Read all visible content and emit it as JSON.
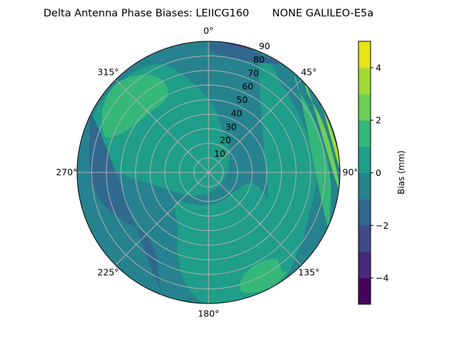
{
  "chart_data": {
    "type": "contour",
    "projection": "polar",
    "title": "Delta Antenna Phase Biases: LEIICG160       NONE GALILEO-E5a",
    "theta_direction": "clockwise",
    "theta_zero": "top",
    "theta_ticks": [
      "0°",
      "45°",
      "90°",
      "135°",
      "180°",
      "225°",
      "270°",
      "315°"
    ],
    "theta_tick_values": [
      0,
      45,
      90,
      135,
      180,
      225,
      270,
      315
    ],
    "r_ticks": [
      "10",
      "20",
      "30",
      "40",
      "50",
      "60",
      "70",
      "80",
      "90"
    ],
    "r_tick_values": [
      10,
      20,
      30,
      40,
      50,
      60,
      70,
      80,
      90
    ],
    "rlim": [
      0,
      90
    ],
    "grid": true,
    "levels": [
      -5,
      -4,
      -3,
      -2,
      -1,
      0,
      1,
      2,
      3,
      4,
      5
    ],
    "level_colors": [
      "#450559",
      "#482878",
      "#3e4a89",
      "#31688e",
      "#26828e",
      "#1f9e89",
      "#35b779",
      "#6ece58",
      "#a2da37",
      "#e5e419"
    ],
    "colorbar": {
      "label": "Bias (mm)",
      "ticks": [
        "−4",
        "−2",
        "0",
        "2",
        "4"
      ],
      "tick_values": [
        -4,
        -2,
        0,
        2,
        4
      ],
      "range": [
        -5,
        5
      ],
      "colormap": "viridis"
    },
    "background_value": -0.5,
    "regions": [
      {
        "value": 0.5,
        "points": [
          [
            5,
            45
          ],
          [
            350,
            62
          ],
          [
            335,
            86
          ],
          [
            300,
            90
          ],
          [
            280,
            80
          ],
          [
            268,
            58
          ],
          [
            255,
            35
          ],
          [
            225,
            22
          ],
          [
            180,
            15
          ],
          [
            130,
            12
          ],
          [
            80,
            14
          ],
          [
            40,
            22
          ],
          [
            15,
            32
          ]
        ]
      },
      {
        "value": 0.5,
        "points": [
          [
            235,
            30
          ],
          [
            210,
            40
          ],
          [
            200,
            62
          ],
          [
            190,
            80
          ],
          [
            180,
            90
          ],
          [
            160,
            90
          ],
          [
            140,
            88
          ],
          [
            125,
            72
          ],
          [
            118,
            55
          ],
          [
            112,
            40
          ],
          [
            100,
            30
          ],
          [
            120,
            22
          ],
          [
            160,
            22
          ],
          [
            200,
            24
          ]
        ]
      },
      {
        "value": 1.5,
        "points": [
          [
            290,
            75
          ],
          [
            302,
            84
          ],
          [
            315,
            87
          ],
          [
            328,
            78
          ],
          [
            335,
            68
          ],
          [
            333,
            56
          ],
          [
            314,
            56
          ],
          [
            298,
            60
          ],
          [
            288,
            71
          ]
        ]
      },
      {
        "value": 1.5,
        "points": [
          [
            160,
            86
          ],
          [
            150,
            88
          ],
          [
            138,
            84
          ],
          [
            140,
            74
          ],
          [
            150,
            68
          ],
          [
            162,
            72
          ],
          [
            166,
            82
          ]
        ]
      },
      {
        "value": 0.5,
        "points": [
          [
            30,
            84
          ],
          [
            40,
            76
          ],
          [
            60,
            72
          ],
          [
            90,
            74
          ],
          [
            110,
            72
          ],
          [
            130,
            80
          ],
          [
            150,
            90
          ],
          [
            20,
            90
          ]
        ]
      },
      {
        "value": 1.5,
        "points": [
          [
            40,
            90
          ],
          [
            44,
            82
          ],
          [
            60,
            80
          ],
          [
            90,
            82
          ],
          [
            110,
            86
          ],
          [
            118,
            90
          ]
        ]
      },
      {
        "value": 2.5,
        "points": [
          [
            46,
            90
          ],
          [
            50,
            84
          ],
          [
            65,
            84
          ],
          [
            90,
            86
          ],
          [
            102,
            90
          ]
        ]
      },
      {
        "value": 3.5,
        "points": [
          [
            55,
            90
          ],
          [
            58,
            87
          ],
          [
            70,
            87
          ],
          [
            88,
            89
          ],
          [
            95,
            90
          ]
        ]
      },
      {
        "value": 4.5,
        "points": [
          [
            62,
            90
          ],
          [
            66,
            89
          ],
          [
            78,
            89
          ],
          [
            86,
            90
          ]
        ]
      },
      {
        "value": -1.5,
        "points": [
          [
            0,
            90
          ],
          [
            0,
            80
          ],
          [
            15,
            78
          ],
          [
            28,
            82
          ],
          [
            36,
            90
          ]
        ]
      },
      {
        "value": -2.5,
        "points": [
          [
            2,
            90
          ],
          [
            5,
            87
          ],
          [
            18,
            86
          ],
          [
            28,
            90
          ]
        ]
      },
      {
        "value": -1.5,
        "points": [
          [
            200,
            90
          ],
          [
            205,
            78
          ],
          [
            215,
            62
          ],
          [
            228,
            58
          ],
          [
            240,
            66
          ],
          [
            255,
            75
          ],
          [
            270,
            80
          ],
          [
            290,
            84
          ],
          [
            300,
            90
          ]
        ]
      },
      {
        "value": -2.5,
        "points": [
          [
            268,
            90
          ],
          [
            272,
            87
          ],
          [
            282,
            88
          ],
          [
            285,
            90
          ]
        ]
      }
    ]
  }
}
